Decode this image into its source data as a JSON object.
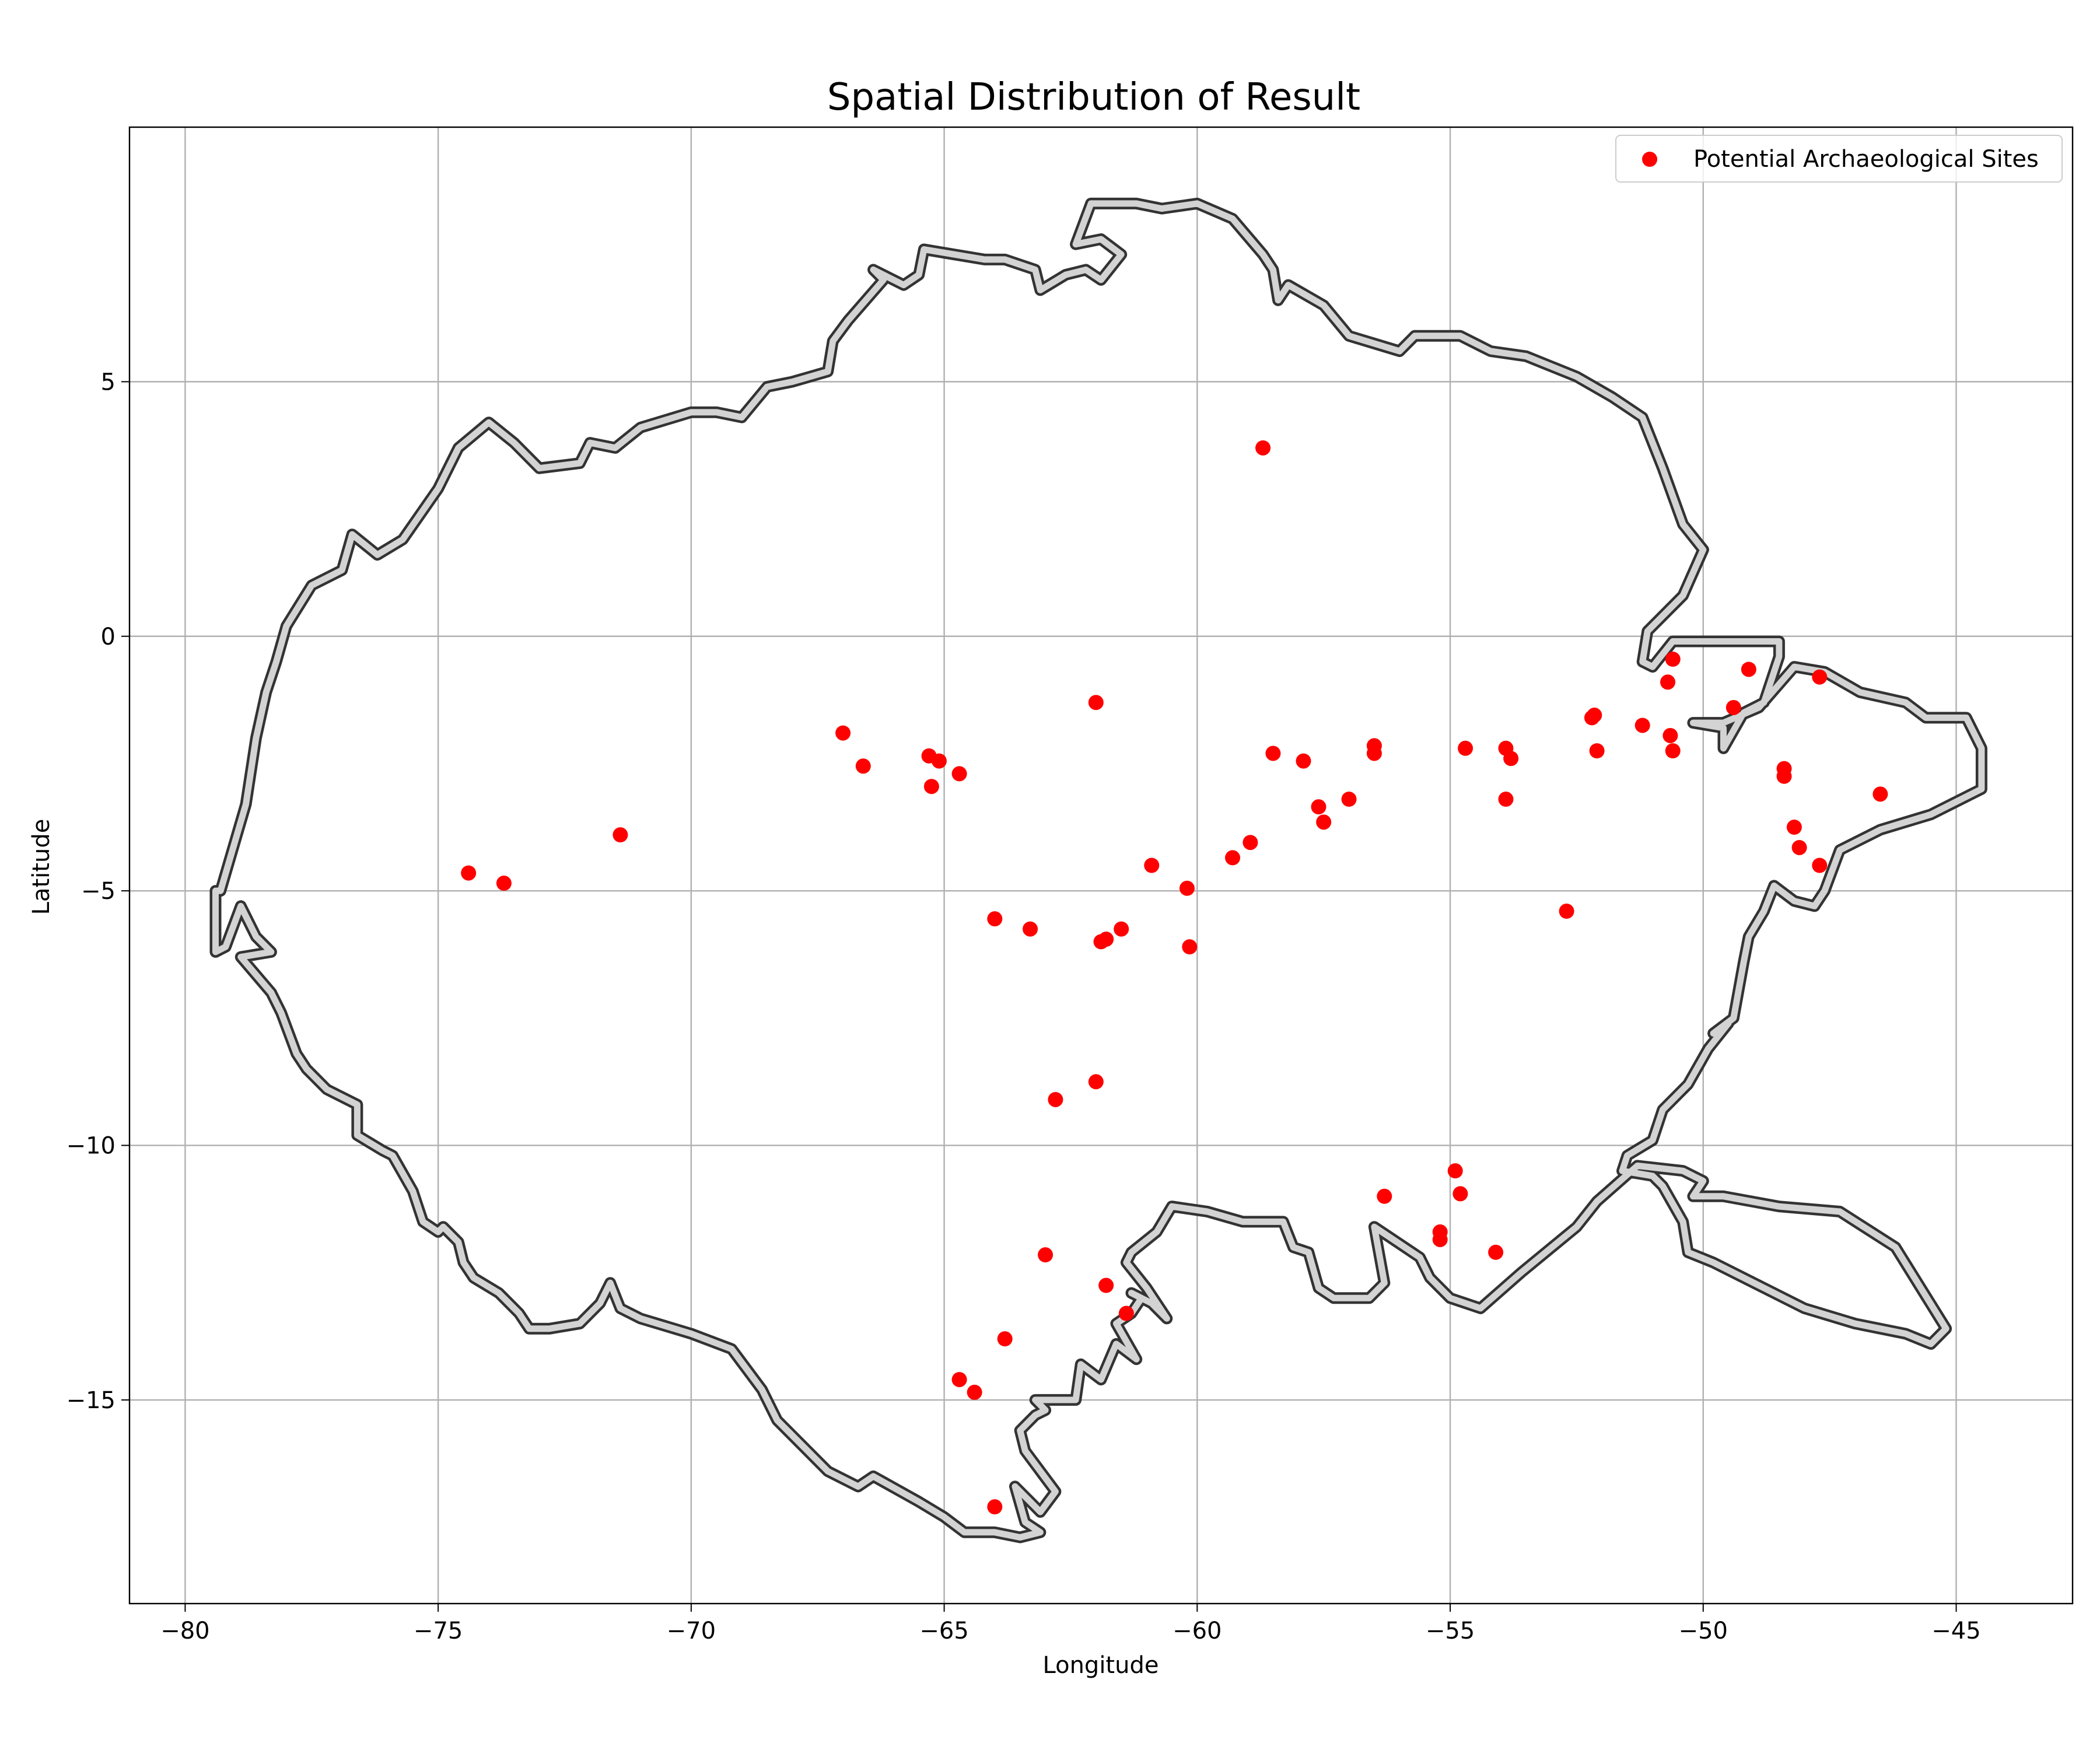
{
  "chart_data": {
    "type": "scatter",
    "title": "Spatial Distribution of Result",
    "xlabel": "Longitude",
    "ylabel": "Latitude",
    "xlim": [
      -81.1,
      -42.7
    ],
    "ylim": [
      -19.0,
      10.0
    ],
    "xticks": [
      -80,
      -75,
      -70,
      -65,
      -60,
      -55,
      -50,
      -45
    ],
    "yticks": [
      5,
      0,
      -5,
      -10,
      -15
    ],
    "xtick_labels": [
      "−80",
      "−75",
      "−70",
      "−65",
      "−60",
      "−55",
      "−50",
      "−45"
    ],
    "ytick_labels": [
      "5",
      "0",
      "−5",
      "−10",
      "−15"
    ],
    "grid": true,
    "legend": {
      "entries": [
        "Potential Archaeological Sites"
      ],
      "placement": "top-right"
    },
    "colors": {
      "points": "#ff0000",
      "boundary_fill": "#d3d3d3",
      "boundary_edge": "#333333",
      "grid": "#b0b0b0"
    },
    "series": [
      {
        "name": "Potential Archaeological Sites",
        "points": [
          [
            -58.7,
            3.7
          ],
          [
            -62.0,
            -1.3
          ],
          [
            -67.0,
            -1.9
          ],
          [
            -66.6,
            -2.55
          ],
          [
            -65.3,
            -2.35
          ],
          [
            -65.1,
            -2.45
          ],
          [
            -64.7,
            -2.7
          ],
          [
            -65.25,
            -2.95
          ],
          [
            -74.4,
            -4.65
          ],
          [
            -73.7,
            -4.85
          ],
          [
            -71.4,
            -3.9
          ],
          [
            -64.0,
            -5.55
          ],
          [
            -63.3,
            -5.75
          ],
          [
            -61.9,
            -6.0
          ],
          [
            -61.8,
            -5.95
          ],
          [
            -61.5,
            -5.75
          ],
          [
            -60.9,
            -4.5
          ],
          [
            -60.2,
            -4.95
          ],
          [
            -60.15,
            -6.1
          ],
          [
            -59.3,
            -4.35
          ],
          [
            -58.95,
            -4.05
          ],
          [
            -58.5,
            -2.3
          ],
          [
            -57.9,
            -2.45
          ],
          [
            -57.6,
            -3.35
          ],
          [
            -57.5,
            -3.65
          ],
          [
            -57.0,
            -3.2
          ],
          [
            -56.5,
            -2.15
          ],
          [
            -56.5,
            -2.3
          ],
          [
            -54.7,
            -2.2
          ],
          [
            -53.9,
            -2.2
          ],
          [
            -53.8,
            -2.4
          ],
          [
            -53.9,
            -3.2
          ],
          [
            -52.7,
            -5.4
          ],
          [
            -52.2,
            -1.6
          ],
          [
            -52.15,
            -1.55
          ],
          [
            -52.1,
            -2.25
          ],
          [
            -51.2,
            -1.75
          ],
          [
            -50.7,
            -0.9
          ],
          [
            -50.6,
            -0.45
          ],
          [
            -50.65,
            -1.95
          ],
          [
            -50.6,
            -2.25
          ],
          [
            -49.4,
            -1.4
          ],
          [
            -49.1,
            -0.65
          ],
          [
            -48.4,
            -2.6
          ],
          [
            -48.4,
            -2.75
          ],
          [
            -48.2,
            -3.75
          ],
          [
            -48.1,
            -4.15
          ],
          [
            -47.7,
            -4.5
          ],
          [
            -47.7,
            -0.8
          ],
          [
            -46.5,
            -3.1
          ],
          [
            -62.8,
            -9.1
          ],
          [
            -62.0,
            -8.75
          ],
          [
            -63.0,
            -12.15
          ],
          [
            -61.8,
            -12.75
          ],
          [
            -61.4,
            -13.3
          ],
          [
            -63.8,
            -13.8
          ],
          [
            -64.7,
            -14.6
          ],
          [
            -64.4,
            -14.85
          ],
          [
            -64.0,
            -17.1
          ],
          [
            -56.3,
            -11.0
          ],
          [
            -55.2,
            -11.7
          ],
          [
            -55.2,
            -11.85
          ],
          [
            -54.9,
            -10.5
          ],
          [
            -54.8,
            -10.95
          ],
          [
            -54.1,
            -12.1
          ]
        ]
      }
    ]
  }
}
